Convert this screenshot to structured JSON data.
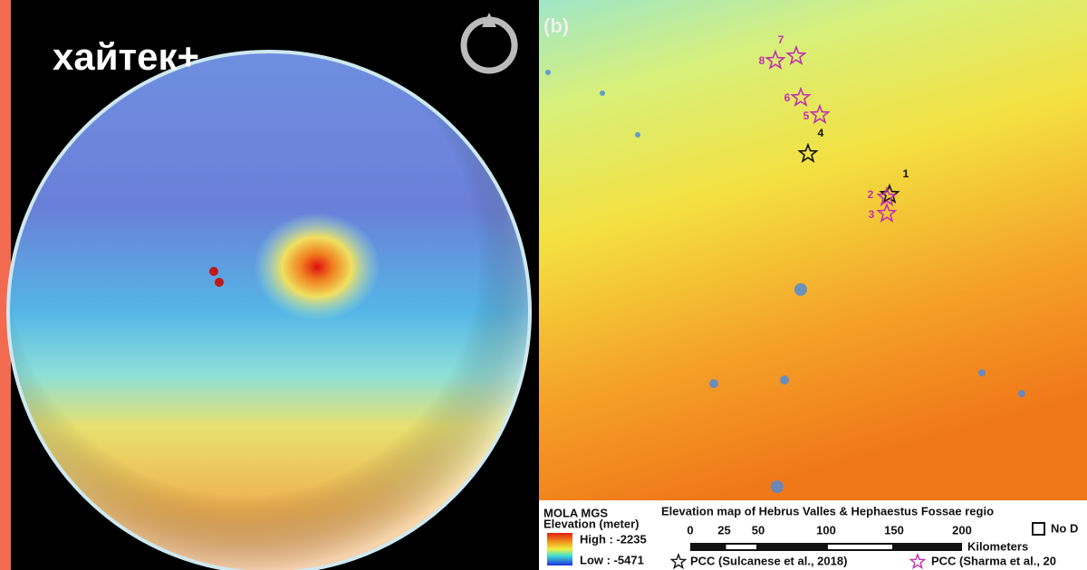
{
  "logo": "хайтек+",
  "panel_label": "(b)",
  "stars": [
    {
      "label": "1"
    },
    {
      "label": "2"
    },
    {
      "label": "3"
    },
    {
      "label": "4"
    },
    {
      "label": "5"
    },
    {
      "label": "6"
    },
    {
      "label": "7"
    },
    {
      "label": "8"
    }
  ],
  "legend": {
    "source": "MOLA MGS",
    "title": "Elevation map of Hebrus Valles & Hephaestus Fossae regio",
    "elevation_label": "Elevation (meter)",
    "high": "High : -2235",
    "low": "Low : -5471",
    "scale_ticks": [
      0,
      25,
      50,
      100,
      150,
      200
    ],
    "scale_unit": "Kilometers",
    "no_data": "No D",
    "pcc_black": "PCC (Sulcanese et al., 2018)",
    "pcc_magenta": "PCC (Sharma et al., 20"
  }
}
